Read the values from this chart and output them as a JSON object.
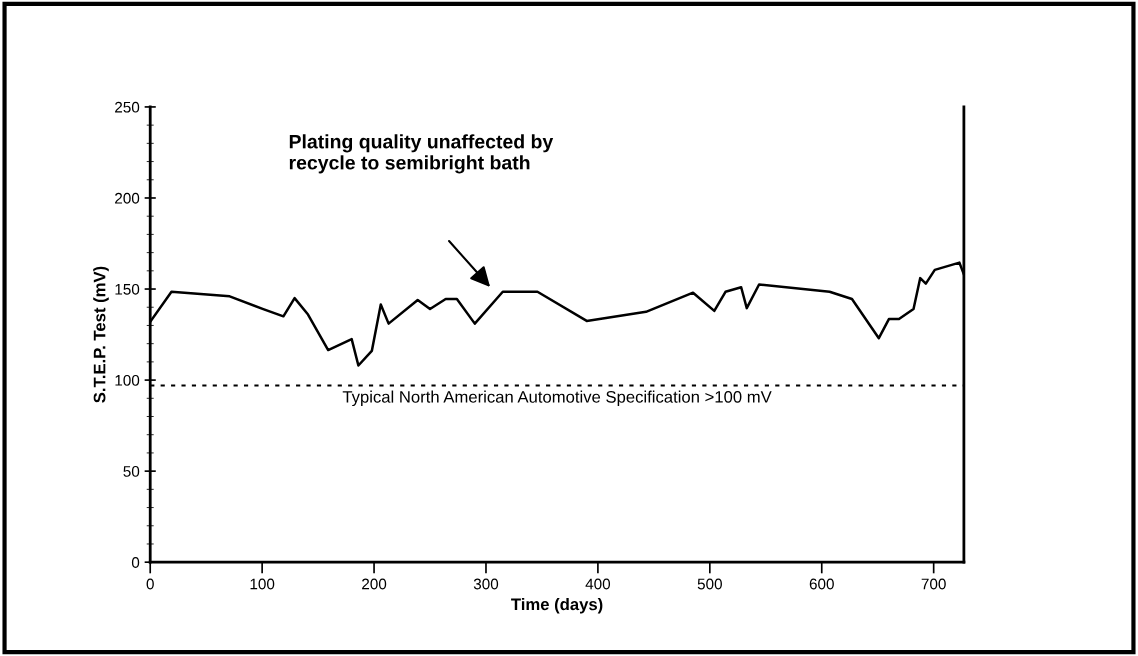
{
  "chart_data": {
    "type": "line",
    "xlabel": "Time (days)",
    "ylabel": "S.T.E.P. Test (mV)",
    "x": [
      0,
      19,
      71,
      101,
      119,
      129,
      141,
      159,
      180,
      186,
      198,
      206,
      213,
      239,
      250,
      264,
      274,
      290,
      315,
      346,
      390,
      443,
      485,
      504,
      514,
      528,
      533,
      544,
      607,
      627,
      651,
      660,
      669,
      682,
      688,
      693,
      701,
      723,
      727
    ],
    "series": [
      {
        "color": "#000000",
        "values": [
          132,
          148.5,
          146,
          139,
          135,
          145,
          136,
          116.5,
          122.5,
          108,
          116,
          141.5,
          131,
          144,
          139,
          144.5,
          144.5,
          131,
          148.5,
          148.5,
          132.5,
          137.5,
          148,
          138,
          148.5,
          151,
          139.5,
          152.5,
          148.5,
          144.5,
          123,
          133.5,
          133.5,
          139,
          156,
          153,
          160.5,
          164.5,
          158
        ]
      }
    ],
    "xlim": [
      0,
      727
    ],
    "xticks": [
      0,
      100,
      200,
      300,
      400,
      500,
      600,
      700
    ],
    "ylim": [
      0,
      250
    ],
    "yticks": [
      0,
      50,
      100,
      150,
      200,
      250
    ],
    "grid": false,
    "legend": false,
    "marker": "none",
    "line_style": "solid",
    "ref_lines": [
      {
        "axis": "y",
        "value": 97,
        "color": "#000000",
        "line_style": "dotted"
      }
    ],
    "annotations": [
      "Plating quality unaffected by\nrecycle to semibright bath",
      "Typical North American Automotive Specification >100 mV"
    ]
  }
}
